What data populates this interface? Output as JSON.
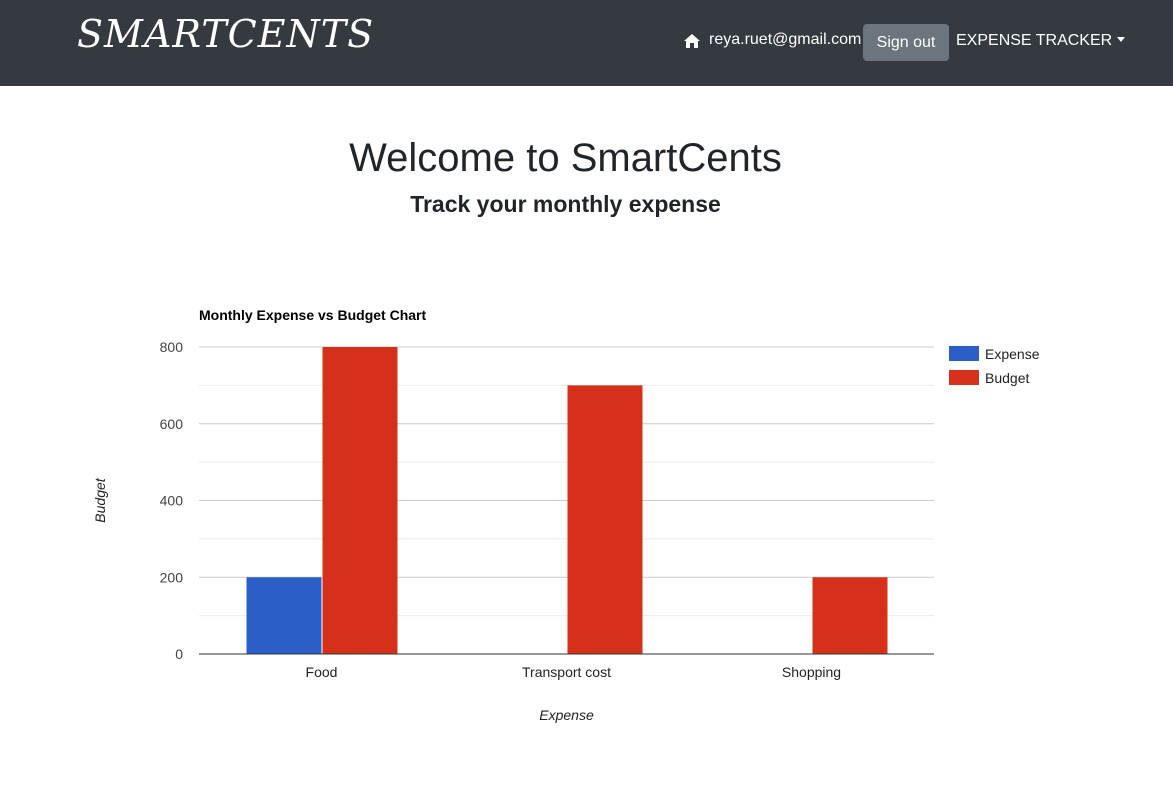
{
  "navbar": {
    "brand": "SMARTCENTS",
    "user_email": "reya.ruet@gmail.com",
    "signout_label": "Sign out",
    "menu_label": "EXPENSE TRACKER",
    "home_icon": "home-icon"
  },
  "main": {
    "title": "Welcome to SmartCents",
    "subtitle": "Track your monthly expense"
  },
  "colors": {
    "navbar_bg": "#343a40",
    "signout_bg": "#6c757d",
    "expense": "#2b5ec7",
    "budget": "#d7301a"
  },
  "chart_data": {
    "type": "bar",
    "title": "Monthly Expense vs Budget Chart",
    "xlabel": "Expense",
    "ylabel": "Budget",
    "categories": [
      "Food",
      "Transport cost",
      "Shopping"
    ],
    "series": [
      {
        "name": "Expense",
        "values": [
          200,
          0,
          0
        ],
        "color": "#2b5ec7"
      },
      {
        "name": "Budget",
        "values": [
          800,
          700,
          200
        ],
        "color": "#d7301a"
      }
    ],
    "ylim": [
      0,
      800
    ],
    "yticks": [
      0,
      200,
      400,
      600,
      800
    ],
    "grid": true,
    "legend": "right"
  }
}
